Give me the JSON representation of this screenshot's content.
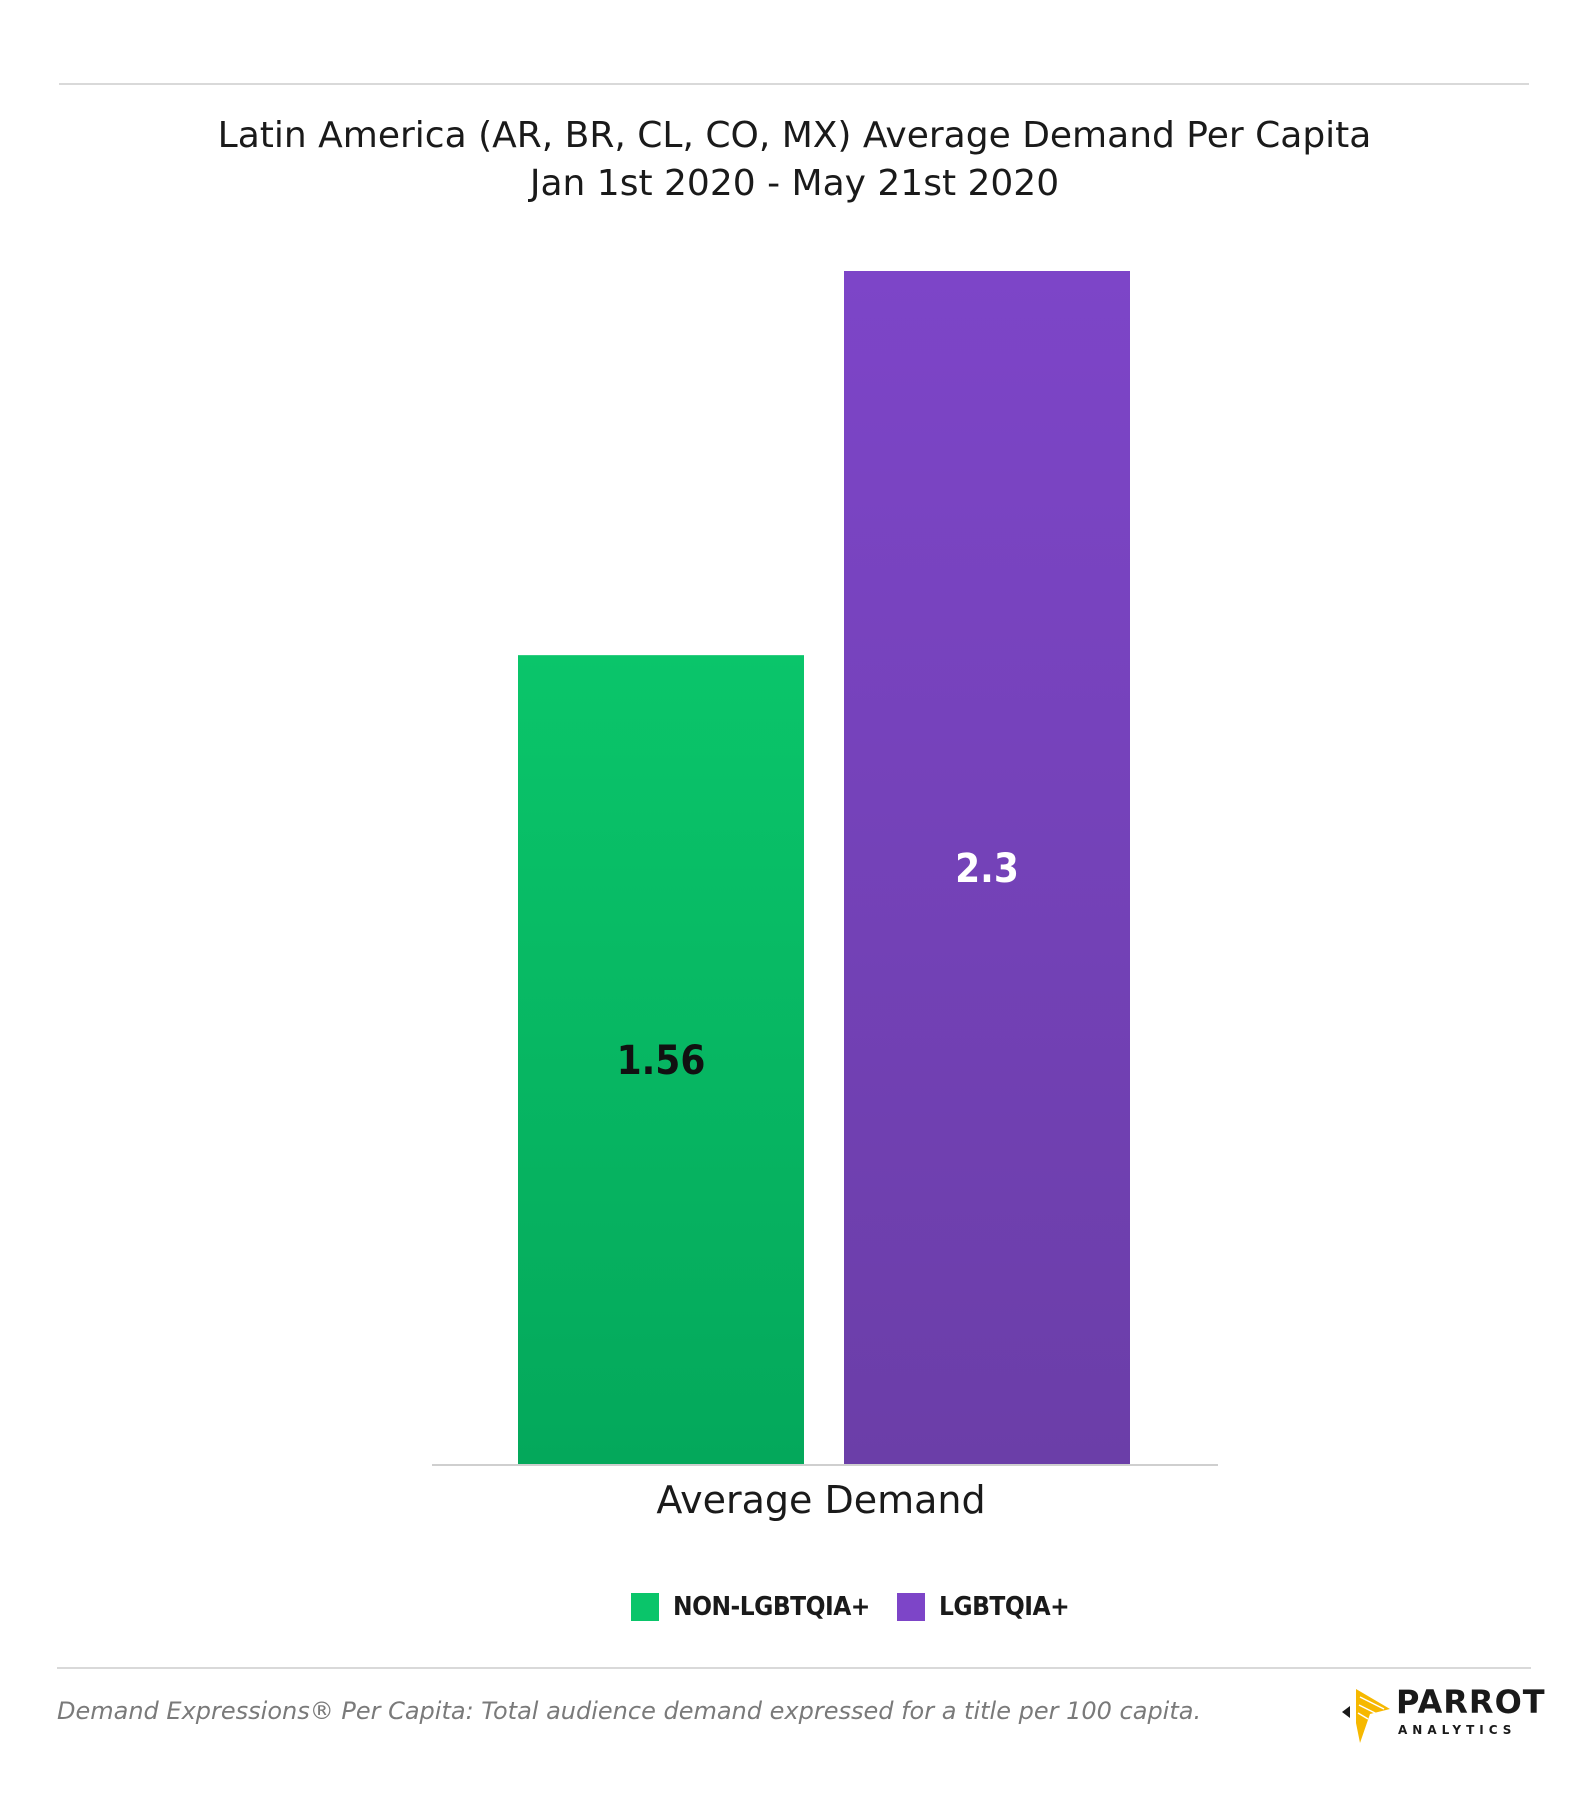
{
  "header": {
    "title_line1": "Latin America (AR, BR, CL, CO, MX) Average Demand Per Capita",
    "title_line2": "Jan 1st 2020 - May 21st 2020"
  },
  "chart_data": {
    "type": "bar",
    "title": "Latin America (AR, BR, CL, CO, MX) Average Demand Per Capita",
    "subtitle": "Jan 1st 2020 - May 21st 2020",
    "categories": [
      "Average Demand"
    ],
    "xlabel": "",
    "ylabel": "",
    "ylim": [
      0,
      2.3
    ],
    "grid": false,
    "legend_position": "bottom",
    "series": [
      {
        "name": "NON-LGBTQIA+",
        "values": [
          1.56
        ],
        "data_label": "1.56",
        "color": "#0ac56a",
        "color_bottom": "#04a85b",
        "label_color": "#111111"
      },
      {
        "name": "LGBTQIA+",
        "values": [
          2.3
        ],
        "data_label": "2.3",
        "color": "#7d45c8",
        "color_bottom": "#6b3ea8",
        "label_color": "#ffffff"
      }
    ]
  },
  "footer": {
    "note": "Demand Expressions® Per Capita: Total audience demand expressed for a title per 100 capita.",
    "brand_name": "PARROT",
    "brand_sub": "ANALYTICS"
  },
  "colors": {
    "accent_green": "#0ac56a",
    "accent_purple": "#7d45c8",
    "logo_yellow": "#f6b800"
  }
}
